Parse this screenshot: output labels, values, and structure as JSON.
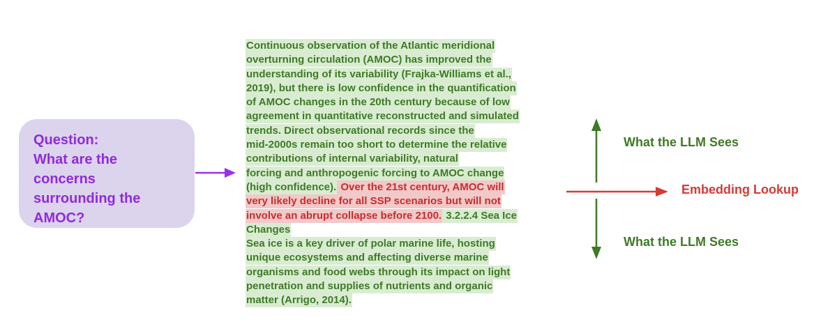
{
  "colors": {
    "question_bg": "#dcd3ec",
    "question_text": "#8f2bdc",
    "green_highlight": "#d9ecd2",
    "green_text": "#3f7a26",
    "red_highlight": "#f1c9c9",
    "red_text": "#c82d2d",
    "purple_arrow": "#9b30e8",
    "green_arrow": "#3f7a26",
    "red_arrow": "#d63a34"
  },
  "question": {
    "lines": [
      "Question:",
      "What are the",
      "concerns",
      "surrounding the",
      "AMOC?"
    ]
  },
  "passage": {
    "lines": [
      [
        {
          "t": "Continuous observation of the Atlantic meridional",
          "c": "green"
        }
      ],
      [
        {
          "t": "overturning circulation (AMOC) has improved the",
          "c": "green"
        }
      ],
      [
        {
          "t": "understanding of its variability (Frajka-Williams et  al.,",
          "c": "green"
        }
      ],
      [
        {
          "t": "2019), but there is low confidence in the quantification",
          "c": "green"
        }
      ],
      [
        {
          "t": "of AMOC changes in the 20th century because of low",
          "c": "green"
        }
      ],
      [
        {
          "t": "agreement in quantitative reconstructed and simulated",
          "c": "green"
        }
      ],
      [
        {
          "t": "trends. Direct observational records since the",
          "c": "green"
        }
      ],
      [
        {
          "t": "mid-2000s remain too short to determine the relative",
          "c": "green"
        }
      ],
      [
        {
          "t": "contributions of internal variability, natural",
          "c": "green"
        }
      ],
      [
        {
          "t": "forcing and anthropogenic forcing to AMOC change",
          "c": "green"
        }
      ],
      [
        {
          "t": "(high confidence).",
          "c": "green"
        },
        {
          "t": " Over the 21st century, AMOC will",
          "c": "red"
        }
      ],
      [
        {
          "t": "very likely decline for all SSP scenarios but will not",
          "c": "red"
        }
      ],
      [
        {
          "t": "involve an abrupt collapse before 2100.",
          "c": "red"
        },
        {
          "t": " 3.2.2.4 Sea Ice",
          "c": "green"
        }
      ],
      [
        {
          "t": "Changes",
          "c": "green"
        }
      ],
      [
        {
          "t": "Sea ice is a key driver of polar marine life, hosting",
          "c": "green"
        }
      ],
      [
        {
          "t": "unique ecosystems and affecting diverse marine",
          "c": "green"
        }
      ],
      [
        {
          "t": "organisms and food webs through its impact on light",
          "c": "green"
        }
      ],
      [
        {
          "t": "penetration and supplies of nutrients and organic",
          "c": "green"
        }
      ],
      [
        {
          "t": "matter (Arrigo, 2014).",
          "c": "green"
        }
      ]
    ]
  },
  "labels": {
    "top": "What the LLM Sees",
    "middle": "Embedding Lookup",
    "bottom": "What the LLM Sees"
  }
}
